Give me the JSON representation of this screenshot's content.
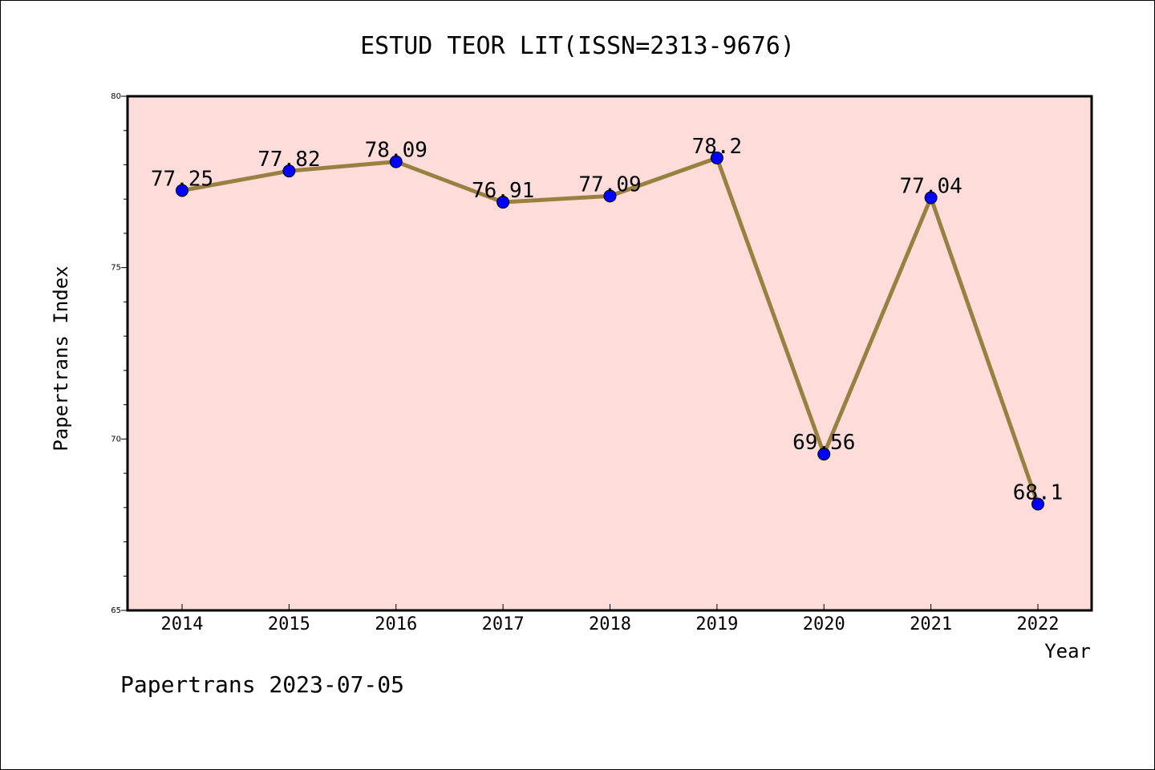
{
  "chart_data": {
    "type": "line",
    "title": "ESTUD TEOR LIT(ISSN=2313-9676)",
    "xlabel": "Year",
    "ylabel": "Papertrans Index",
    "categories": [
      "2014",
      "2015",
      "2016",
      "2017",
      "2018",
      "2019",
      "2020",
      "2021",
      "2022"
    ],
    "series": [
      {
        "values": [
          77.25,
          77.82,
          78.09,
          76.91,
          77.09,
          78.2,
          69.56,
          77.04,
          68.1
        ],
        "labels": [
          "77.25",
          "77.82",
          "78.09",
          "76.91",
          "77.09",
          "78.2",
          "69.56",
          "77.04",
          "68.1"
        ]
      }
    ],
    "ylim": [
      65,
      80
    ],
    "yticks": [
      "65",
      "70",
      "75",
      "80"
    ],
    "grid": false,
    "legend": "none",
    "colors": {
      "plot_background": "#fddcda",
      "line": "#9a8040",
      "marker": "#0000ff"
    }
  },
  "footer": {
    "text": "Papertrans 2023-07-05"
  }
}
